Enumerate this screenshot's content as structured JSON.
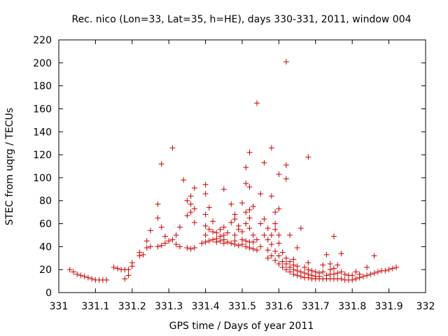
{
  "chart_data": {
    "type": "scatter",
    "title": "Rec. nico (Lon=33, Lat=35, h=HE), days 330-331, 2011, window 004",
    "xlabel": "GPS time / Days of year 2011",
    "ylabel": "STEC from uqrg / TECUs",
    "xlim": [
      331,
      332
    ],
    "ylim": [
      0,
      220
    ],
    "x_ticks": [
      "331",
      "331.1",
      "331.2",
      "331.3",
      "331.4",
      "331.5",
      "331.6",
      "331.7",
      "331.8",
      "331.9",
      "332"
    ],
    "y_ticks": [
      "0",
      "20",
      "40",
      "60",
      "80",
      "100",
      "120",
      "140",
      "160",
      "180",
      "200",
      "220"
    ],
    "grid": false,
    "legend": "none",
    "marker": "+",
    "color": "#cc0000",
    "points": [
      [
        331.03,
        20
      ],
      [
        331.04,
        18
      ],
      [
        331.05,
        16
      ],
      [
        331.06,
        15
      ],
      [
        331.07,
        14
      ],
      [
        331.08,
        13
      ],
      [
        331.09,
        12
      ],
      [
        331.1,
        11
      ],
      [
        331.11,
        11
      ],
      [
        331.12,
        11
      ],
      [
        331.13,
        11
      ],
      [
        331.15,
        22
      ],
      [
        331.16,
        21
      ],
      [
        331.17,
        20
      ],
      [
        331.18,
        20
      ],
      [
        331.18,
        12
      ],
      [
        331.19,
        15
      ],
      [
        331.19,
        20
      ],
      [
        331.2,
        23
      ],
      [
        331.2,
        26
      ],
      [
        331.22,
        32
      ],
      [
        331.22,
        35
      ],
      [
        331.23,
        33
      ],
      [
        331.24,
        39
      ],
      [
        331.24,
        45
      ],
      [
        331.25,
        40
      ],
      [
        331.25,
        54
      ],
      [
        331.27,
        40
      ],
      [
        331.27,
        65
      ],
      [
        331.27,
        77
      ],
      [
        331.28,
        41
      ],
      [
        331.28,
        57
      ],
      [
        331.28,
        112
      ],
      [
        331.29,
        43
      ],
      [
        331.29,
        49
      ],
      [
        331.3,
        45
      ],
      [
        331.31,
        46
      ],
      [
        331.31,
        126
      ],
      [
        331.32,
        42
      ],
      [
        331.32,
        50
      ],
      [
        331.33,
        40
      ],
      [
        331.33,
        57
      ],
      [
        331.34,
        98
      ],
      [
        331.35,
        39
      ],
      [
        331.35,
        67
      ],
      [
        331.35,
        80
      ],
      [
        331.36,
        38
      ],
      [
        331.36,
        70
      ],
      [
        331.36,
        77
      ],
      [
        331.36,
        84
      ],
      [
        331.37,
        39
      ],
      [
        331.37,
        61
      ],
      [
        331.37,
        73
      ],
      [
        331.37,
        91
      ],
      [
        331.39,
        43
      ],
      [
        331.4,
        44
      ],
      [
        331.4,
        50
      ],
      [
        331.4,
        58
      ],
      [
        331.4,
        68
      ],
      [
        331.4,
        86
      ],
      [
        331.4,
        94
      ],
      [
        331.41,
        45
      ],
      [
        331.41,
        55
      ],
      [
        331.41,
        74
      ],
      [
        331.42,
        46
      ],
      [
        331.42,
        53
      ],
      [
        331.42,
        62
      ],
      [
        331.43,
        44
      ],
      [
        331.43,
        47
      ],
      [
        331.43,
        52
      ],
      [
        331.44,
        45
      ],
      [
        331.44,
        49
      ],
      [
        331.44,
        55
      ],
      [
        331.45,
        43
      ],
      [
        331.45,
        46
      ],
      [
        331.45,
        50
      ],
      [
        331.45,
        57
      ],
      [
        331.45,
        90
      ],
      [
        331.46,
        44
      ],
      [
        331.46,
        52
      ],
      [
        331.47,
        43
      ],
      [
        331.47,
        61
      ],
      [
        331.47,
        77
      ],
      [
        331.48,
        42
      ],
      [
        331.48,
        45
      ],
      [
        331.48,
        50
      ],
      [
        331.48,
        64
      ],
      [
        331.48,
        68
      ],
      [
        331.49,
        41
      ],
      [
        331.49,
        55
      ],
      [
        331.49,
        58
      ],
      [
        331.5,
        42
      ],
      [
        331.5,
        46
      ],
      [
        331.5,
        53
      ],
      [
        331.5,
        78
      ],
      [
        331.51,
        40
      ],
      [
        331.51,
        45
      ],
      [
        331.51,
        60
      ],
      [
        331.51,
        70
      ],
      [
        331.51,
        95
      ],
      [
        331.51,
        109
      ],
      [
        331.52,
        39
      ],
      [
        331.52,
        44
      ],
      [
        331.52,
        56
      ],
      [
        331.52,
        65
      ],
      [
        331.52,
        72
      ],
      [
        331.52,
        92
      ],
      [
        331.52,
        122
      ],
      [
        331.53,
        38
      ],
      [
        331.53,
        44
      ],
      [
        331.53,
        50
      ],
      [
        331.53,
        75
      ],
      [
        331.54,
        37
      ],
      [
        331.54,
        46
      ],
      [
        331.54,
        165
      ],
      [
        331.55,
        40
      ],
      [
        331.55,
        60
      ],
      [
        331.55,
        86
      ],
      [
        331.56,
        50
      ],
      [
        331.56,
        113
      ],
      [
        331.56,
        64
      ],
      [
        331.57,
        30
      ],
      [
        331.57,
        37
      ],
      [
        331.57,
        46
      ],
      [
        331.57,
        56
      ],
      [
        331.58,
        32
      ],
      [
        331.58,
        42
      ],
      [
        331.58,
        50
      ],
      [
        331.58,
        84
      ],
      [
        331.58,
        126
      ],
      [
        331.59,
        28
      ],
      [
        331.59,
        36
      ],
      [
        331.59,
        55
      ],
      [
        331.59,
        60
      ],
      [
        331.59,
        70
      ],
      [
        331.6,
        25
      ],
      [
        331.6,
        32
      ],
      [
        331.6,
        43
      ],
      [
        331.6,
        50
      ],
      [
        331.6,
        73
      ],
      [
        331.6,
        103
      ],
      [
        331.61,
        22
      ],
      [
        331.61,
        27
      ],
      [
        331.61,
        35
      ],
      [
        331.62,
        20
      ],
      [
        331.62,
        25
      ],
      [
        331.62,
        30
      ],
      [
        331.62,
        99
      ],
      [
        331.62,
        111
      ],
      [
        331.62,
        201
      ],
      [
        331.63,
        18
      ],
      [
        331.63,
        22
      ],
      [
        331.63,
        27
      ],
      [
        331.63,
        50
      ],
      [
        331.64,
        16
      ],
      [
        331.64,
        20
      ],
      [
        331.64,
        24
      ],
      [
        331.64,
        29
      ],
      [
        331.65,
        15
      ],
      [
        331.65,
        19
      ],
      [
        331.65,
        23
      ],
      [
        331.65,
        39
      ],
      [
        331.66,
        14
      ],
      [
        331.66,
        18
      ],
      [
        331.66,
        56
      ],
      [
        331.67,
        13
      ],
      [
        331.67,
        17
      ],
      [
        331.67,
        22
      ],
      [
        331.68,
        13
      ],
      [
        331.68,
        16
      ],
      [
        331.68,
        20
      ],
      [
        331.68,
        26
      ],
      [
        331.68,
        118
      ],
      [
        331.69,
        12
      ],
      [
        331.69,
        15
      ],
      [
        331.69,
        19
      ],
      [
        331.7,
        12
      ],
      [
        331.7,
        14
      ],
      [
        331.7,
        18
      ],
      [
        331.71,
        12
      ],
      [
        331.71,
        14
      ],
      [
        331.71,
        17
      ],
      [
        331.72,
        12
      ],
      [
        331.72,
        18
      ],
      [
        331.72,
        24
      ],
      [
        331.73,
        12
      ],
      [
        331.73,
        15
      ],
      [
        331.73,
        33
      ],
      [
        331.74,
        12
      ],
      [
        331.74,
        16
      ],
      [
        331.74,
        20
      ],
      [
        331.74,
        25
      ],
      [
        331.75,
        12
      ],
      [
        331.75,
        16
      ],
      [
        331.75,
        21
      ],
      [
        331.75,
        49
      ],
      [
        331.76,
        12
      ],
      [
        331.76,
        17
      ],
      [
        331.76,
        24
      ],
      [
        331.77,
        12
      ],
      [
        331.77,
        18
      ],
      [
        331.77,
        34
      ],
      [
        331.78,
        11
      ],
      [
        331.78,
        16
      ],
      [
        331.79,
        11
      ],
      [
        331.79,
        15
      ],
      [
        331.8,
        11
      ],
      [
        331.8,
        15
      ],
      [
        331.81,
        12
      ],
      [
        331.81,
        18
      ],
      [
        331.82,
        13
      ],
      [
        331.82,
        16
      ],
      [
        331.83,
        14
      ],
      [
        331.84,
        15
      ],
      [
        331.84,
        22
      ],
      [
        331.85,
        16
      ],
      [
        331.86,
        32
      ],
      [
        331.86,
        17
      ],
      [
        331.87,
        18
      ],
      [
        331.88,
        19
      ],
      [
        331.89,
        19
      ],
      [
        331.9,
        20
      ],
      [
        331.91,
        21
      ],
      [
        331.92,
        22
      ]
    ]
  }
}
